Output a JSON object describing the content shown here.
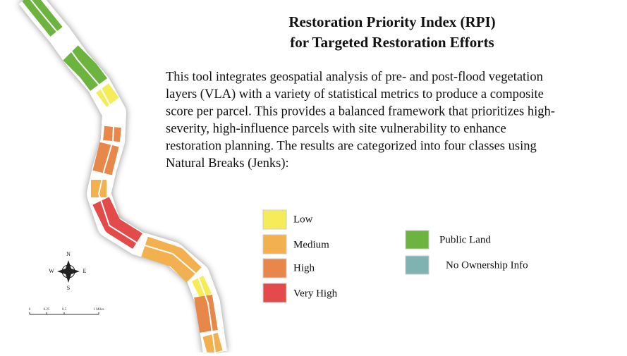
{
  "header": {
    "title_lines": [
      "Restoration Priority Index (RPI)",
      "for Targeted Restoration Efforts"
    ]
  },
  "description": {
    "lines": [
      "This tool integrates geospatial analysis of pre- and post-flood vegetation",
      "layers (VLA) with a variety of statistical metrics to produce a composite",
      "score per parcel. This provides a balanced framework that prioritizes high-",
      "severity, high-influence parcels with site vulnerability to enhance",
      "restoration planning. The results are categorized into four classes using",
      "Natural Breaks (Jenks):"
    ]
  },
  "legend": {
    "rpi_classes": [
      "Low",
      "Medium",
      "High",
      "Very High"
    ],
    "ownership": [
      "Public Land",
      "No Ownership Info"
    ]
  },
  "compass": {
    "north": "N",
    "east": "E",
    "south": "S",
    "west": "W"
  },
  "scale_bar": {
    "labels": [
      "0",
      "0.25",
      "0.5",
      "1 Miles"
    ]
  }
}
